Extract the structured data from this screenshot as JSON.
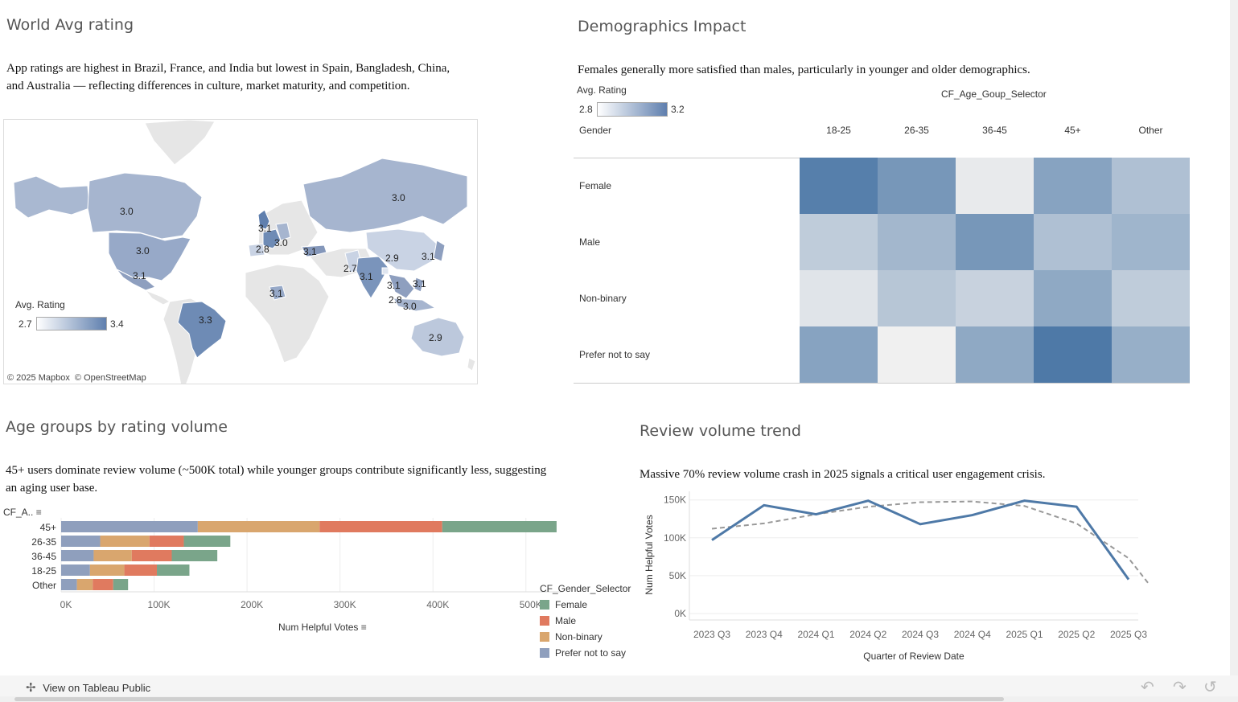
{
  "world": {
    "title": "World Avg rating",
    "description": "App ratings are highest in Brazil, France, and India but lowest in Spain, Bangladesh, China, and Australia — reflecting differences in culture, market maturity, and competition.",
    "legend_title": "Avg. Rating",
    "legend_min": "2.7",
    "legend_max": "3.4",
    "attribution": "© 2025 Mapbox  © OpenStreetMap",
    "labels": [
      "3.0",
      "3.0",
      "3.1",
      "3.3",
      "3.1",
      "3.0",
      "2.8",
      "3.1",
      "3.0",
      "2.7",
      "3.1",
      "2.9",
      "3.1",
      "3.1",
      "3.1",
      "2.8",
      "3.0",
      "2.9",
      "3.1"
    ]
  },
  "demographics": {
    "title": "Demographics Impact",
    "description": "Females generally more satisfied than males, particularly in younger and older demographics.",
    "legend_title": "Avg. Rating",
    "legend_min": "2.8",
    "legend_max": "3.2",
    "column_header": "CF_Age_Goup_Selector",
    "row_header": "Gender"
  },
  "age": {
    "title": "Age groups by rating volume",
    "description": "45+ users dominate review volume (~500K total) while younger groups contribute significantly less, suggesting an aging user base.",
    "axis_header": "CF_A..",
    "legend_title": "CF_Gender_Selector"
  },
  "trend": {
    "title": "Review volume trend",
    "description": "Massive 70% review volume crash in 2025 signals a critical user engagement crisis."
  },
  "footer": {
    "link": "View on Tableau Public"
  },
  "colors": {
    "female": "#7aa58a",
    "male": "#e07a5f",
    "nonbinary": "#d9a66e",
    "prefer_not": "#8f9fbd",
    "line": "#4e79a7",
    "trend": "#999999"
  },
  "chart_data": [
    {
      "type": "heatmap",
      "title": "Demographics Impact",
      "x": [
        "18-25",
        "26-35",
        "36-45",
        "45+",
        "Other"
      ],
      "y": [
        "Female",
        "Male",
        "Non-binary",
        "Prefer not to say"
      ],
      "xlabel": "CF_Age_Goup_Selector",
      "ylabel": "Gender",
      "values": [
        [
          3.18,
          3.1,
          2.82,
          3.06,
          2.96
        ],
        [
          2.92,
          2.99,
          3.1,
          2.96,
          3.0
        ],
        [
          2.84,
          2.94,
          2.9,
          3.04,
          2.92
        ],
        [
          3.06,
          2.8,
          3.04,
          3.2,
          3.02
        ]
      ],
      "color_range": [
        2.8,
        3.2
      ]
    },
    {
      "type": "bar",
      "title": "Age groups by rating volume",
      "orientation": "horizontal",
      "stacked": true,
      "categories": [
        "45+",
        "26-35",
        "36-45",
        "18-25",
        "Other"
      ],
      "series": [
        {
          "name": "Prefer not to say",
          "values": [
            147000,
            42000,
            35000,
            31000,
            17000
          ]
        },
        {
          "name": "Non-binary",
          "values": [
            131000,
            53000,
            41000,
            37000,
            17000
          ]
        },
        {
          "name": "Male",
          "values": [
            132000,
            37000,
            43000,
            35000,
            22000
          ]
        },
        {
          "name": "Female",
          "values": [
            123000,
            50000,
            49000,
            35000,
            16000
          ]
        }
      ],
      "xlabel": "Num Helpful Votes",
      "ylabel": "CF_A..",
      "xlim": [
        0,
        540000
      ],
      "xticks": [
        "0K",
        "100K",
        "200K",
        "300K",
        "400K",
        "500K"
      ],
      "legend_title": "CF_Gender_Selector",
      "legend": [
        "Female",
        "Male",
        "Non-binary",
        "Prefer not to say"
      ],
      "grid": true
    },
    {
      "type": "line",
      "title": "Review volume trend",
      "x": [
        "2023 Q3",
        "2023 Q4",
        "2024 Q1",
        "2024 Q2",
        "2024 Q3",
        "2024 Q4",
        "2025 Q1",
        "2025 Q2",
        "2025 Q3"
      ],
      "series": [
        {
          "values": [
            97000,
            143000,
            131000,
            149000,
            118000,
            130000,
            149000,
            141000,
            45000
          ]
        },
        {
          "values": [
            112000,
            119000,
            131000,
            141000,
            147000,
            148000,
            142000,
            119000,
            73000
          ]
        }
      ],
      "xlabel": "Quarter of Review Date",
      "ylabel": "Num Helpful Votes",
      "ylim": [
        0,
        155000
      ],
      "yticks": [
        "0K",
        "50K",
        "100K",
        "150K"
      ],
      "grid": true
    }
  ]
}
